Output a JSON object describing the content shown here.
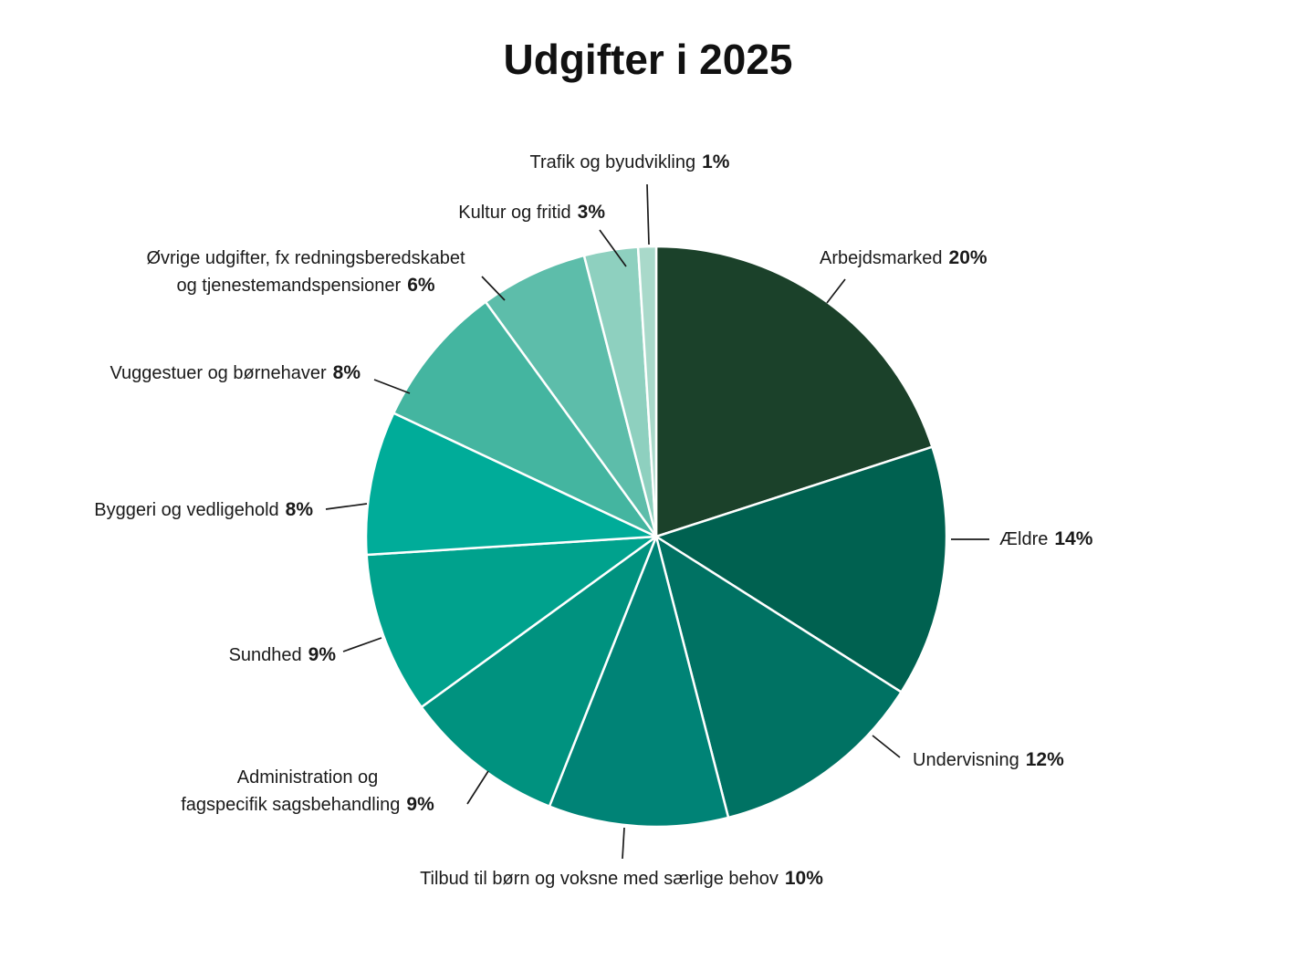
{
  "title": "Udgifter i 2025",
  "chart_data": {
    "type": "pie",
    "title": "Udgifter i 2025",
    "unit": "%",
    "direction": "clockwise",
    "start_angle_deg": 0,
    "legend_position": "outside-callout-labels",
    "categories": [
      "Arbejdsmarked",
      "Ældre",
      "Undervisning",
      "Tilbud til børn og voksne med særlige behov",
      "Administration og fagspecifik sagsbehandling",
      "Sundhed",
      "Byggeri og vedligehold",
      "Vuggestuer og børnehaver",
      "Øvrige udgifter, fx redningsberedskabet og tjenestemandspensioner",
      "Kultur og fritid",
      "Trafik og byudvikling"
    ],
    "values": [
      20,
      14,
      12,
      10,
      9,
      9,
      8,
      8,
      6,
      3,
      1
    ],
    "colors": [
      "#1B412A",
      "#006150",
      "#007263",
      "#008376",
      "#00927F",
      "#00A28D",
      "#00AC99",
      "#44B5A0",
      "#5DBDAA",
      "#8ED0BF",
      "#A9D9CA"
    ],
    "slice_border_color": "#ffffff",
    "label_text_color": "#1a1a1a"
  },
  "labels": {
    "arbejdsmarked": {
      "text": "Arbejdsmarked",
      "pct": "20%"
    },
    "aeldre": {
      "text": "Ældre",
      "pct": "14%"
    },
    "undervisning": {
      "text": "Undervisning",
      "pct": "12%"
    },
    "tilbud": {
      "text": "Tilbud til børn og voksne med særlige behov",
      "pct": "10%"
    },
    "administration": {
      "line1": "Administration og",
      "line2": "fagspecifik sagsbehandling",
      "pct": "9%"
    },
    "sundhed": {
      "text": "Sundhed",
      "pct": "9%"
    },
    "byggeri": {
      "text": "Byggeri og vedligehold",
      "pct": "8%"
    },
    "vuggestuer": {
      "text": "Vuggestuer og børnehaver",
      "pct": "8%"
    },
    "ovrige": {
      "line1": "Øvrige udgifter, fx redningsberedskabet",
      "line2": "og tjenestemandspensioner",
      "pct": "6%"
    },
    "kultur": {
      "text": "Kultur og fritid",
      "pct": "3%"
    },
    "trafik": {
      "text": "Trafik og byudvikling",
      "pct": "1%"
    }
  }
}
